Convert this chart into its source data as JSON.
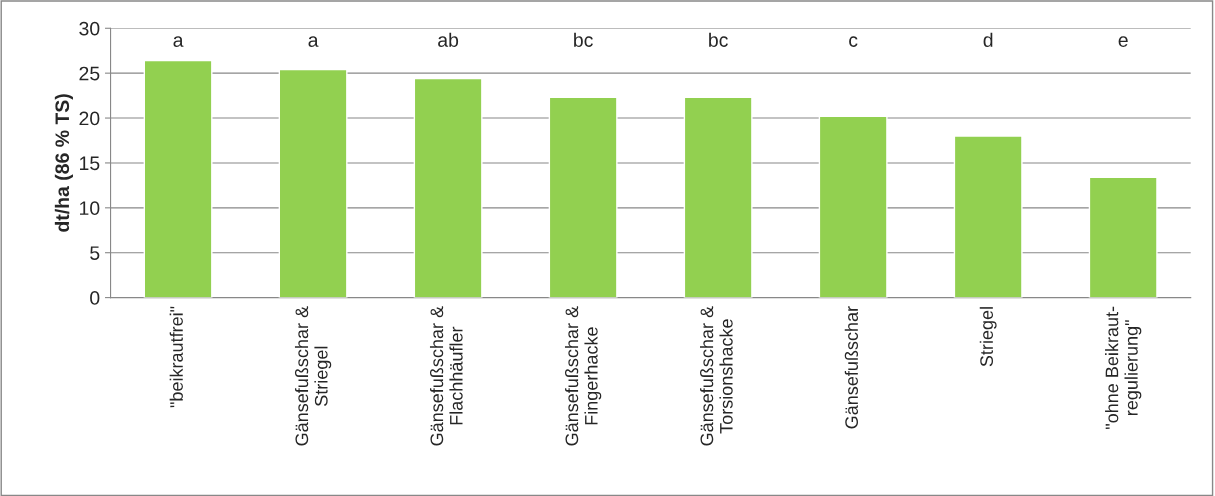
{
  "chart_data": {
    "type": "bar",
    "ylabel": "dt/ha (86 % TS)",
    "categories": [
      "\"beikrautfrei\"",
      "Gänsefußschar &\nStriegel",
      "Gänsefußschar &\nFlachhäufler",
      "Gänsefußschar &\nFingerhacke",
      "Gänsefußschar &\nTorsionshacke",
      "Gänsefußschar",
      "Striegel",
      "\"ohne Beikraut-\nregulierung\""
    ],
    "values": [
      26.4,
      25.4,
      24.4,
      22.3,
      22.3,
      20.2,
      18.0,
      13.4
    ],
    "color": "#92d050",
    "ylim": [
      0,
      30
    ],
    "yticks": [
      0,
      5,
      10,
      15,
      20,
      25,
      30
    ],
    "grid": "y",
    "legend": false,
    "annotations": [
      "a",
      "a",
      "ab",
      "bc",
      "bc",
      "c",
      "d",
      "e"
    ]
  }
}
